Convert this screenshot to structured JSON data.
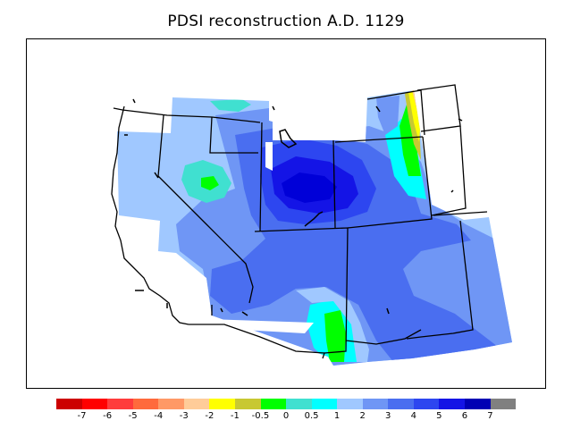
{
  "title": "PDSI reconstruction A.D. 1129",
  "colors": {
    "background": "#ffffff",
    "outline": "#000000",
    "palette": {
      "wet_1": "#a0c8ff",
      "wet_2": "#6f96f5",
      "wet_3": "#4a6ef0",
      "wet_4": "#2d46f0",
      "wet_5": "#1414e6",
      "wet_6": "#0000b4",
      "neutral_pos": "#40e0d0",
      "neutral_cyan": "#00ffff",
      "green": "#00ff00",
      "yellow_green": "#c8c832",
      "yellow": "#ffff00",
      "dry_1": "#ffcc99"
    }
  },
  "legend": {
    "colors": [
      "#cc0000",
      "#ff0000",
      "#ff3c3c",
      "#ff6a3c",
      "#ff9966",
      "#ffcc99",
      "#ffff00",
      "#c8c832",
      "#00ff00",
      "#40e0d0",
      "#00ffff",
      "#a0c8ff",
      "#6f96f5",
      "#4a6ef0",
      "#2d46f0",
      "#1414e6",
      "#0000b4",
      "#808080"
    ],
    "tick_labels": [
      "-7",
      "-6",
      "-5",
      "-4",
      "-3",
      "-2",
      "-1",
      "-0.5",
      "0",
      "0.5",
      "1",
      "2",
      "3",
      "4",
      "5",
      "6",
      "7"
    ]
  }
}
